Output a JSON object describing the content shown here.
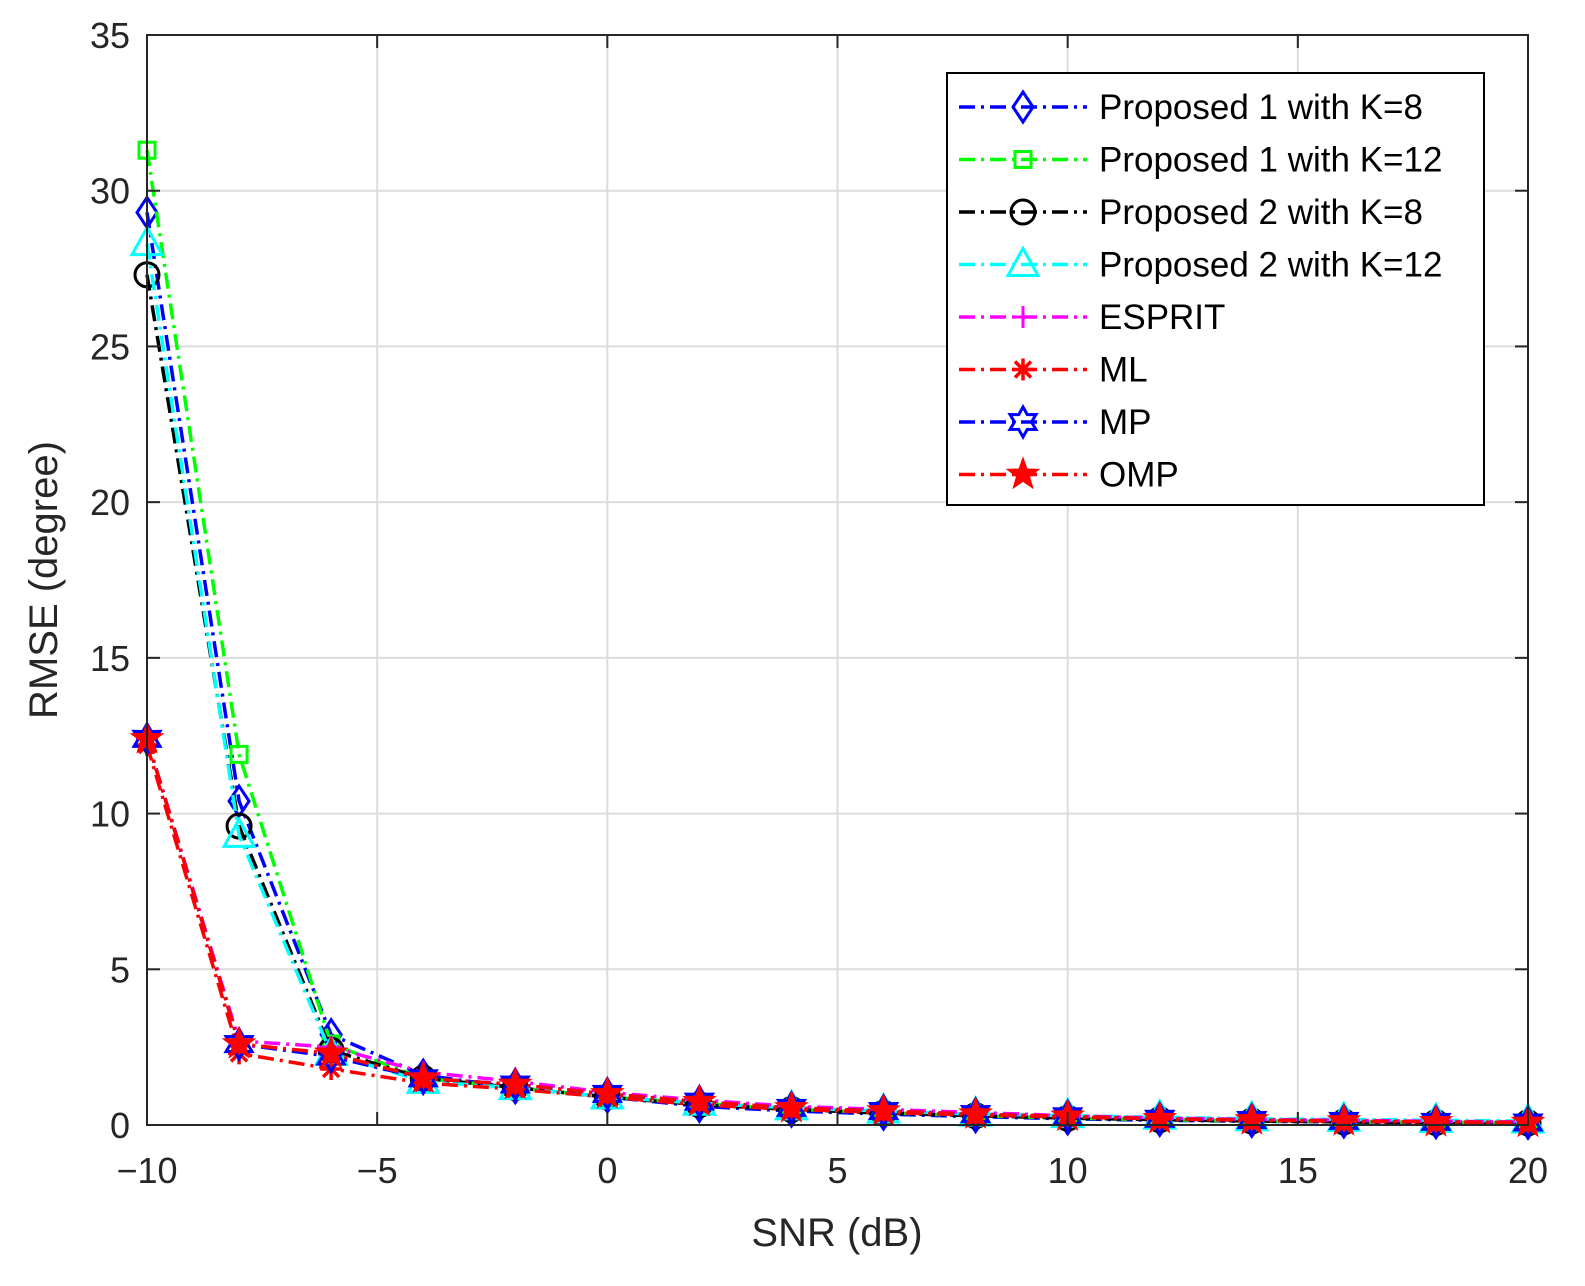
{
  "chart_data": {
    "type": "line",
    "title": "",
    "xlabel": "SNR (dB)",
    "ylabel": "RMSE (degree)",
    "xlim": [
      -10,
      20
    ],
    "ylim": [
      0,
      35
    ],
    "x_ticks": [
      -10,
      -5,
      0,
      5,
      10,
      15,
      20
    ],
    "y_ticks": [
      0,
      5,
      10,
      15,
      20,
      25,
      30,
      35
    ],
    "x_tick_labels": [
      "−10",
      "−5",
      "0",
      "5",
      "10",
      "15",
      "20"
    ],
    "y_tick_labels": [
      "0",
      "5",
      "10",
      "15",
      "20",
      "25",
      "30",
      "35"
    ],
    "grid": true,
    "legend_position": "top-right",
    "x": [
      -10,
      -8,
      -6,
      -4,
      -2,
      0,
      2,
      4,
      6,
      8,
      10,
      12,
      14,
      16,
      18,
      20
    ],
    "series": [
      {
        "name": "Proposed 1 with K=8",
        "color": "#0000ff",
        "marker": "diamond",
        "values": [
          29.3,
          10.4,
          2.9,
          1.6,
          1.2,
          0.9,
          0.6,
          0.45,
          0.35,
          0.27,
          0.2,
          0.15,
          0.12,
          0.1,
          0.08,
          0.06
        ]
      },
      {
        "name": "Proposed 1 with K=12",
        "color": "#00ff00",
        "marker": "square",
        "values": [
          31.3,
          11.9,
          2.6,
          1.5,
          1.2,
          0.9,
          0.7,
          0.5,
          0.4,
          0.3,
          0.22,
          0.17,
          0.13,
          0.11,
          0.09,
          0.07
        ]
      },
      {
        "name": "Proposed 2 with K=8",
        "color": "#000000",
        "marker": "circle",
        "values": [
          27.3,
          9.6,
          2.4,
          1.5,
          1.2,
          0.9,
          0.65,
          0.5,
          0.38,
          0.3,
          0.22,
          0.17,
          0.13,
          0.1,
          0.08,
          0.07
        ]
      },
      {
        "name": "Proposed 2 with K=12",
        "color": "#00ffff",
        "marker": "triangle",
        "values": [
          28.3,
          9.3,
          2.3,
          1.4,
          1.2,
          0.9,
          0.7,
          0.55,
          0.45,
          0.35,
          0.3,
          0.25,
          0.2,
          0.18,
          0.15,
          0.13
        ]
      },
      {
        "name": "ESPRIT",
        "color": "#ff00ff",
        "marker": "plus",
        "values": [
          12.4,
          2.7,
          2.5,
          1.7,
          1.4,
          1.05,
          0.8,
          0.6,
          0.5,
          0.4,
          0.3,
          0.22,
          0.18,
          0.15,
          0.12,
          0.1
        ]
      },
      {
        "name": "ML",
        "color": "#ff0000",
        "marker": "asterisk",
        "values": [
          12.2,
          2.3,
          1.8,
          1.35,
          1.15,
          0.9,
          0.65,
          0.5,
          0.4,
          0.32,
          0.25,
          0.2,
          0.15,
          0.12,
          0.1,
          0.08
        ]
      },
      {
        "name": "MP",
        "color": "#0000ff",
        "marker": "hexagram",
        "values": [
          12.4,
          2.6,
          2.2,
          1.5,
          1.3,
          1.0,
          0.75,
          0.55,
          0.45,
          0.35,
          0.28,
          0.2,
          0.16,
          0.13,
          0.1,
          0.08
        ]
      },
      {
        "name": "OMP",
        "color": "#ff0000",
        "marker": "pentagram",
        "values": [
          12.4,
          2.6,
          2.3,
          1.5,
          1.3,
          1.0,
          0.75,
          0.55,
          0.45,
          0.35,
          0.28,
          0.2,
          0.16,
          0.13,
          0.1,
          0.08
        ]
      }
    ]
  }
}
